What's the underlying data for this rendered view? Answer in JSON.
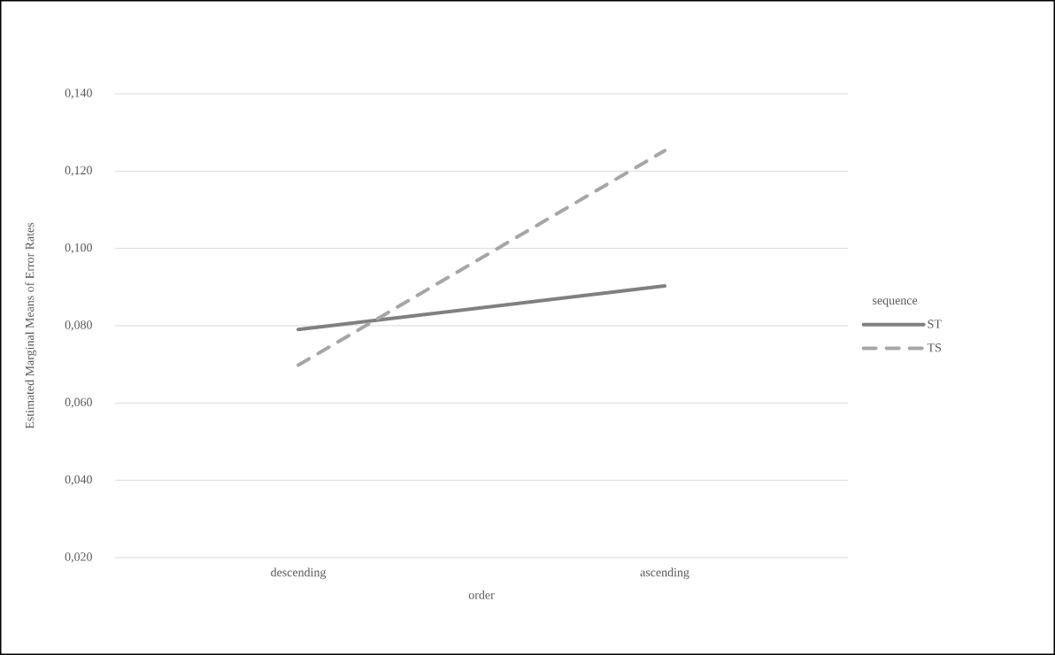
{
  "chart_data": {
    "type": "line",
    "xlabel": "order",
    "ylabel": "Estimated Marginal Means of Error Rates",
    "legend_title": "sequence",
    "categories": [
      "descending",
      "ascending"
    ],
    "series": [
      {
        "name": "ST",
        "color": "#808080",
        "line_style": "solid",
        "values": [
          0.079,
          0.0903
        ]
      },
      {
        "name": "TS",
        "color": "#a6a6a6",
        "line_style": "dashed",
        "values": [
          0.0698,
          0.1253
        ]
      }
    ],
    "ylim": [
      0.02,
      0.14
    ],
    "yticks": [
      {
        "value": 0.02,
        "label": "0,020"
      },
      {
        "value": 0.04,
        "label": "0,040"
      },
      {
        "value": 0.06,
        "label": "0,060"
      },
      {
        "value": 0.08,
        "label": "0,080"
      },
      {
        "value": 0.1,
        "label": "0,100"
      },
      {
        "value": 0.12,
        "label": "0,120"
      },
      {
        "value": 0.14,
        "label": "0,140"
      }
    ],
    "grid": "y",
    "legend": "right",
    "marker": "none"
  }
}
